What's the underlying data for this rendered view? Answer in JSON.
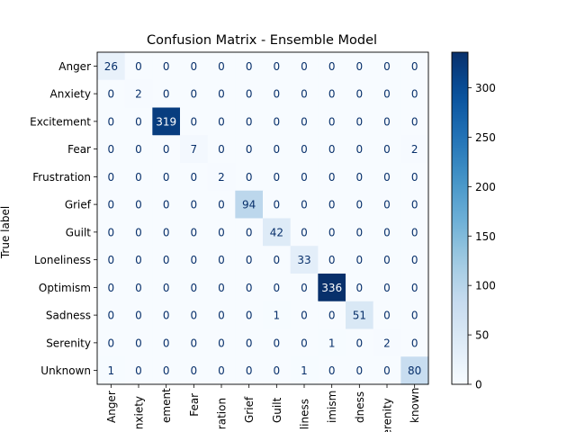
{
  "chart_data": {
    "type": "heatmap",
    "title": "Confusion Matrix - Ensemble Model",
    "ylabel": "True label",
    "row_labels": [
      "Anger",
      "Anxiety",
      "Excitement",
      "Fear",
      "Frustration",
      "Grief",
      "Guilt",
      "Loneliness",
      "Optimism",
      "Sadness",
      "Serenity",
      "Unknown"
    ],
    "col_labels_visible": [
      "Anger",
      "nxiety",
      "ement",
      "Fear",
      "ration",
      "Grief",
      "Guilt",
      "liness",
      "imism",
      "dness",
      "erenity",
      "known"
    ],
    "matrix": [
      [
        26,
        0,
        0,
        0,
        0,
        0,
        0,
        0,
        0,
        0,
        0,
        0
      ],
      [
        0,
        2,
        0,
        0,
        0,
        0,
        0,
        0,
        0,
        0,
        0,
        0
      ],
      [
        0,
        0,
        319,
        0,
        0,
        0,
        0,
        0,
        0,
        0,
        0,
        0
      ],
      [
        0,
        0,
        0,
        7,
        0,
        0,
        0,
        0,
        0,
        0,
        0,
        2
      ],
      [
        0,
        0,
        0,
        0,
        2,
        0,
        0,
        0,
        0,
        0,
        0,
        0
      ],
      [
        0,
        0,
        0,
        0,
        0,
        94,
        0,
        0,
        0,
        0,
        0,
        0
      ],
      [
        0,
        0,
        0,
        0,
        0,
        0,
        42,
        0,
        0,
        0,
        0,
        0
      ],
      [
        0,
        0,
        0,
        0,
        0,
        0,
        0,
        33,
        0,
        0,
        0,
        0
      ],
      [
        0,
        0,
        0,
        0,
        0,
        0,
        0,
        0,
        336,
        0,
        0,
        0
      ],
      [
        0,
        0,
        0,
        0,
        0,
        0,
        1,
        0,
        0,
        51,
        0,
        0
      ],
      [
        0,
        0,
        0,
        0,
        0,
        0,
        0,
        0,
        1,
        0,
        2,
        0
      ],
      [
        1,
        0,
        0,
        0,
        0,
        0,
        0,
        1,
        0,
        0,
        0,
        80
      ]
    ],
    "colormap": "Blues",
    "vmin": 0,
    "vmax": 336,
    "colorbar_ticks": [
      0,
      50,
      100,
      150,
      200,
      250,
      300
    ]
  }
}
